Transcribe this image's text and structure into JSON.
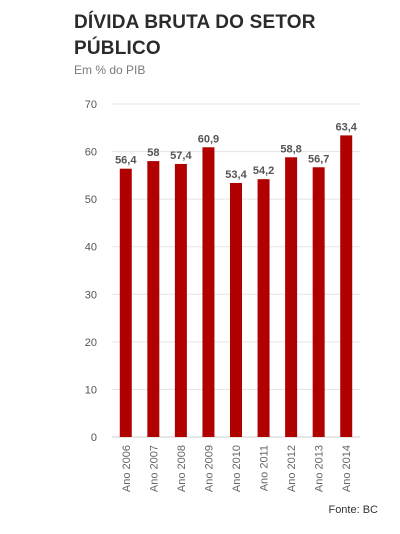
{
  "header": {
    "title": "DÍVIDA BRUTA DO SETOR PÚBLICO",
    "subtitle": "Em % do PIB"
  },
  "footer": {
    "source": "Fonte: BC"
  },
  "colors": {
    "bar": "#b00000",
    "grid": "#e3e3e3",
    "axis": "#cfcfcf"
  },
  "chart_data": {
    "type": "bar",
    "title": "DÍVIDA BRUTA DO SETOR PÚBLICO",
    "subtitle": "Em % do PIB",
    "categories": [
      "Ano 2006",
      "Ano 2007",
      "Ano 2008",
      "Ano 2009",
      "Ano 2010",
      "Ano 2011",
      "Ano 2012",
      "Ano 2013",
      "Ano 2014"
    ],
    "values": [
      56.4,
      58,
      57.4,
      60.9,
      53.4,
      54.2,
      58.8,
      56.7,
      63.4
    ],
    "value_labels": [
      "56,4",
      "58",
      "57,4",
      "60,9",
      "53,4",
      "54,2",
      "58,8",
      "56,7",
      "63,4"
    ],
    "ylim": [
      0,
      70
    ],
    "yticks": [
      0,
      10,
      20,
      30,
      40,
      50,
      60,
      70
    ],
    "grid": true,
    "legend": "none"
  }
}
